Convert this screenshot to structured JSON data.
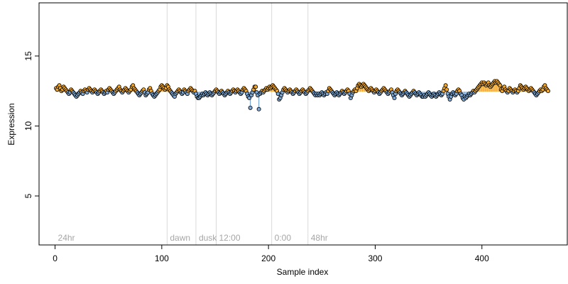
{
  "chart_data": {
    "type": "scatter",
    "title": "",
    "xlabel": "Sample index",
    "ylabel": "Expression",
    "xlim": [
      -15,
      480
    ],
    "ylim": [
      1.5,
      18.8
    ],
    "xticks": [
      0,
      100,
      200,
      300,
      400
    ],
    "yticks": [
      5,
      10,
      15
    ],
    "xtick_labels": [
      "0",
      "100",
      "200",
      "300",
      "400"
    ],
    "ytick_labels": [
      "5",
      "10",
      "15"
    ],
    "baseline": 12.45,
    "grid": false,
    "legend": "none",
    "phase_markers": [
      {
        "label": "24hr",
        "x": 0,
        "line": false
      },
      {
        "label": "dawn",
        "x": 105,
        "line": true
      },
      {
        "label": "dusk",
        "x": 132,
        "line": true
      },
      {
        "label": "12:00",
        "x": 151,
        "line": true
      },
      {
        "label": "0:00",
        "x": 203,
        "line": true
      },
      {
        "label": "48hr",
        "x": 237,
        "line": true
      }
    ],
    "colors": {
      "above": "#f5a623",
      "below": "#7aa7d6",
      "point_edge": "#000000",
      "phase_line": "#d9d9d9",
      "phase_text": "#a6a6a6"
    },
    "series": [
      {
        "x_start": 1,
        "x_step": 1,
        "y": [
          12.7,
          12.6,
          12.8,
          12.9,
          12.7,
          12.5,
          12.6,
          12.8,
          12.7,
          12.6,
          12.5,
          12.4,
          12.3,
          12.4,
          12.6,
          12.5,
          12.4,
          12.3,
          12.2,
          12.1,
          12.2,
          12.3,
          12.4,
          12.5,
          12.4,
          12.3,
          12.5,
          12.6,
          12.5,
          12.4,
          12.6,
          12.7,
          12.6,
          12.5,
          12.4,
          12.5,
          12.6,
          12.5,
          12.4,
          12.3,
          12.4,
          12.5,
          12.6,
          12.5,
          12.4,
          12.3,
          12.4,
          12.5,
          12.4,
          12.6,
          12.7,
          12.6,
          12.5,
          12.4,
          12.3,
          12.4,
          12.5,
          12.6,
          12.7,
          12.8,
          12.6,
          12.5,
          12.4,
          12.5,
          12.6,
          12.7,
          12.6,
          12.5,
          12.4,
          12.5,
          12.6,
          12.8,
          12.9,
          12.7,
          12.6,
          12.5,
          12.4,
          12.3,
          12.2,
          12.3,
          12.4,
          12.5,
          12.6,
          12.4,
          12.2,
          12.3,
          12.4,
          12.6,
          12.7,
          12.5,
          12.3,
          12.2,
          12.1,
          12.2,
          12.3,
          12.4,
          12.5,
          12.6,
          12.8,
          12.9,
          12.8,
          12.7,
          12.6,
          12.7,
          12.9,
          12.8,
          12.6,
          12.5,
          12.4,
          12.3,
          12.2,
          12.1,
          12.3,
          12.4,
          12.5,
          12.6,
          12.5,
          12.4,
          12.3,
          12.4,
          12.6,
          12.5,
          12.4,
          12.3,
          12.5,
          12.6,
          12.7,
          12.6,
          12.5,
          12.4,
          12.5,
          12.3,
          12.1,
          12.0,
          12.0,
          12.1,
          12.2,
          12.3,
          12.2,
          12.3,
          12.4,
          12.3,
          12.2,
          12.3,
          12.4,
          12.3,
          12.2,
          12.3,
          12.4,
          12.5,
          12.6,
          12.5,
          12.4,
          12.3,
          12.4,
          12.5,
          12.4,
          12.3,
          12.2,
          12.3,
          12.4,
          12.5,
          12.4,
          12.3,
          12.4,
          12.5,
          12.6,
          12.5,
          12.4,
          12.5,
          12.6,
          12.5,
          12.4,
          12.3,
          12.4,
          12.6,
          12.7,
          12.6,
          12.5,
          12.3,
          12.1,
          12.0,
          11.3,
          12.2,
          12.4,
          12.6,
          12.8,
          12.8,
          12.4,
          12.2,
          11.2,
          12.3,
          12.4,
          12.5,
          12.4,
          12.5,
          12.6,
          12.7,
          12.6,
          12.7,
          12.8,
          12.7,
          12.8,
          12.9,
          12.8,
          12.7,
          12.6,
          12.5,
          12.3,
          11.9,
          12.0,
          12.2,
          12.4,
          12.6,
          12.7,
          12.6,
          12.5,
          12.4,
          12.5,
          12.6,
          12.5,
          12.4,
          12.3,
          12.4,
          12.5,
          12.6,
          12.5,
          12.4,
          12.3,
          12.4,
          12.5,
          12.6,
          12.5,
          12.4,
          12.3,
          12.4,
          12.5,
          12.6,
          12.7,
          12.6,
          12.5,
          12.4,
          12.3,
          12.2,
          12.3,
          12.2,
          12.3,
          12.2,
          12.3,
          12.4,
          12.3,
          12.2,
          12.3,
          12.4,
          12.3,
          12.5,
          12.7,
          12.6,
          12.5,
          12.4,
          12.3,
          12.2,
          12.3,
          12.4,
          12.3,
          12.2,
          12.3,
          12.4,
          12.5,
          12.4,
          12.3,
          12.4,
          12.5,
          12.6,
          12.5,
          12.3,
          12.0,
          12.2,
          12.4,
          12.5,
          12.6,
          12.5,
          12.7,
          12.9,
          13.0,
          12.9,
          12.8,
          12.9,
          13.0,
          12.9,
          12.8,
          12.7,
          12.6,
          12.5,
          12.6,
          12.7,
          12.6,
          12.5,
          12.4,
          12.5,
          12.6,
          12.5,
          12.4,
          12.3,
          12.4,
          12.5,
          12.6,
          12.7,
          12.6,
          12.5,
          12.4,
          12.3,
          12.4,
          12.5,
          12.6,
          12.4,
          12.2,
          12.0,
          12.3,
          12.5,
          12.6,
          12.5,
          12.4,
          12.3,
          12.2,
          12.3,
          12.4,
          12.5,
          12.4,
          12.3,
          12.2,
          12.1,
          12.2,
          12.3,
          12.4,
          12.5,
          12.4,
          12.3,
          12.2,
          12.3,
          12.4,
          12.3,
          12.2,
          12.1,
          12.1,
          12.2,
          12.1,
          12.2,
          12.3,
          12.4,
          12.3,
          12.2,
          12.1,
          12.2,
          12.3,
          12.2,
          12.1,
          12.2,
          12.3,
          12.4,
          12.3,
          12.2,
          12.3,
          12.5,
          12.7,
          12.9,
          12.6,
          12.3,
          12.1,
          11.9,
          12.1,
          12.3,
          12.4,
          12.3,
          12.2,
          12.3,
          12.5,
          12.6,
          12.5,
          12.3,
          12.2,
          12.0,
          11.9,
          12.1,
          12.0,
          12.1,
          12.2,
          12.3,
          12.2,
          12.3,
          12.4,
          12.5,
          12.4,
          12.5,
          12.6,
          12.7,
          12.8,
          12.9,
          13.0,
          13.1,
          13.0,
          13.1,
          13.0,
          12.9,
          13.0,
          13.1,
          12.9,
          12.8,
          12.9,
          13.0,
          13.1,
          13.2,
          13.1,
          13.2,
          13.1,
          13.0,
          12.9,
          12.6,
          12.5,
          12.7,
          12.8,
          12.6,
          12.5,
          12.4,
          12.5,
          12.7,
          12.6,
          12.5,
          12.4,
          12.5,
          12.6,
          12.5,
          12.4,
          12.5,
          12.7,
          12.9,
          12.8,
          12.7,
          12.6,
          12.7,
          12.8,
          12.7,
          12.6,
          12.5,
          12.6,
          12.7,
          12.6,
          12.5,
          12.4,
          12.3,
          12.2,
          12.3,
          12.4,
          12.5,
          12.6,
          12.5,
          12.6,
          12.8,
          12.9,
          12.7,
          12.6,
          12.5
        ]
      }
    ]
  }
}
